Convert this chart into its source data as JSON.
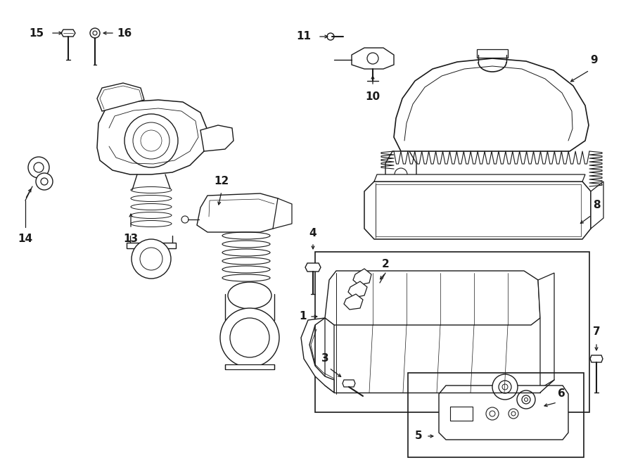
{
  "bg_color": "#ffffff",
  "line_color": "#1a1a1a",
  "fig_width": 9.0,
  "fig_height": 6.61,
  "label_fontsize": 11
}
